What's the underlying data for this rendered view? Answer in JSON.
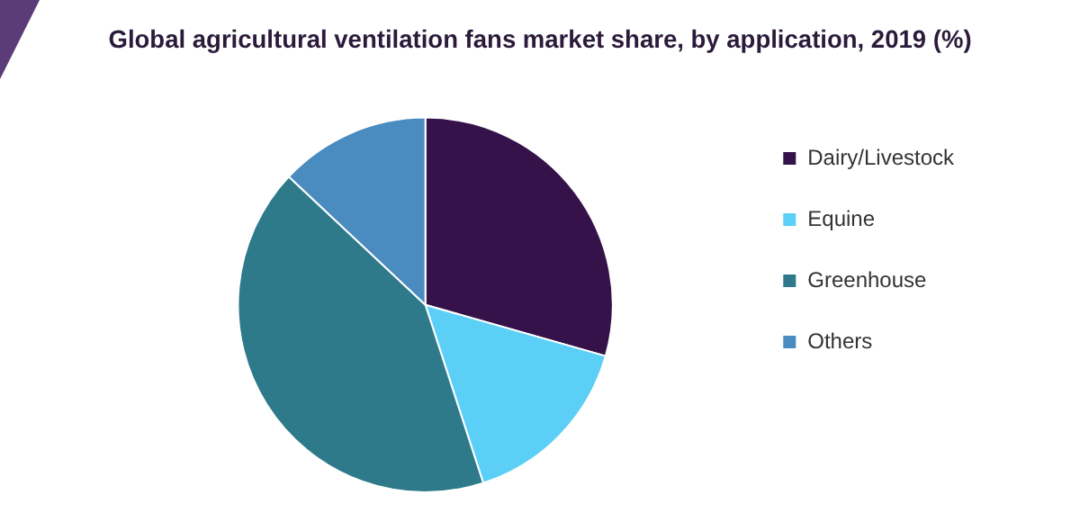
{
  "chart_data": {
    "type": "pie",
    "title": "Global agricultural ventilation fans market share, by application, 2019 (%)",
    "categories": [
      "Dairy/Livestock",
      "Equine",
      "Greenhouse",
      "Others"
    ],
    "values": [
      29.4,
      15.6,
      42,
      13
    ],
    "colors": [
      "#35134a",
      "#5ccff7",
      "#2e7a8a",
      "#4a8cc0"
    ],
    "legend": "right"
  }
}
